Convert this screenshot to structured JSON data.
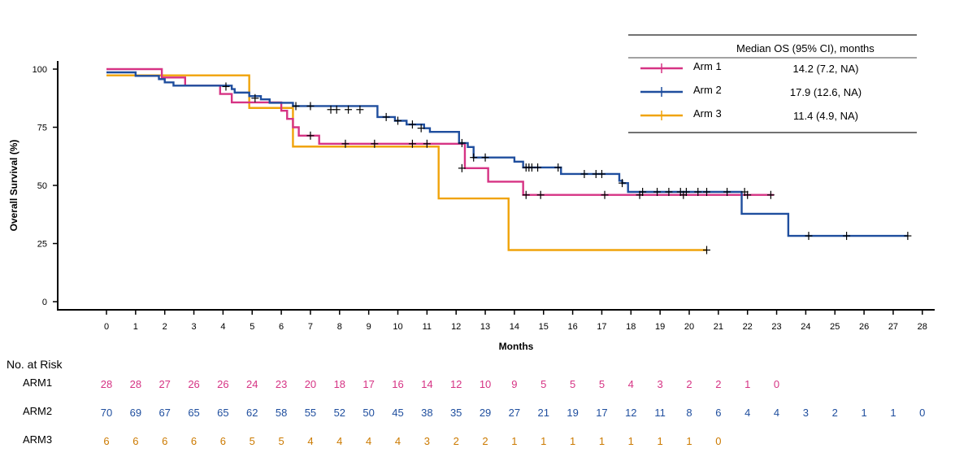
{
  "chart_data": {
    "type": "line",
    "subtype": "kaplan-meier",
    "xlabel": "Months",
    "ylabel": "Overall Survival  (%)",
    "xlim": [
      0,
      28
    ],
    "ylim": [
      0,
      100
    ],
    "x_ticks": [
      0,
      1,
      2,
      3,
      4,
      5,
      6,
      7,
      8,
      9,
      10,
      11,
      12,
      13,
      14,
      15,
      16,
      17,
      18,
      19,
      20,
      21,
      22,
      23,
      24,
      25,
      26,
      27,
      28
    ],
    "y_ticks": [
      0,
      25,
      50,
      75,
      100
    ],
    "legend": {
      "header": "Median OS   (95% CI), months",
      "placement": "top-right",
      "entries": [
        {
          "name": "Arm 1",
          "median": "14.2 (7.2, NA)"
        },
        {
          "name": "Arm 2",
          "median": "17.9 (12.6, NA)"
        },
        {
          "name": "Arm 3",
          "median": "11.4 (4.9, NA)"
        }
      ]
    },
    "series": [
      {
        "name": "Arm 1",
        "color": "#d63384",
        "steps": [
          [
            0,
            100
          ],
          [
            1.9,
            96.4
          ],
          [
            2.7,
            92.9
          ],
          [
            3.9,
            89.3
          ],
          [
            4.3,
            85.7
          ],
          [
            5.3,
            85.7
          ],
          [
            6.0,
            82.1
          ],
          [
            6.2,
            78.6
          ],
          [
            6.4,
            75.0
          ],
          [
            6.6,
            71.4
          ],
          [
            7.3,
            67.9
          ],
          [
            12.0,
            67.9
          ],
          [
            12.3,
            61.5
          ],
          [
            12.3,
            57.4
          ],
          [
            13.0,
            57.4
          ],
          [
            13.1,
            51.6
          ],
          [
            14.3,
            45.9
          ],
          [
            22.9,
            45.9
          ]
        ],
        "censors": [
          [
            7.0,
            71.4
          ],
          [
            8.2,
            67.9
          ],
          [
            9.2,
            67.9
          ],
          [
            10.5,
            67.9
          ],
          [
            11.0,
            67.9
          ],
          [
            12.2,
            57.4
          ],
          [
            14.4,
            45.9
          ],
          [
            14.9,
            45.9
          ],
          [
            17.1,
            45.9
          ],
          [
            18.3,
            45.9
          ],
          [
            19.8,
            45.9
          ],
          [
            22.0,
            45.9
          ],
          [
            22.8,
            45.9
          ]
        ]
      },
      {
        "name": "Arm 2",
        "color": "#1f4e9e",
        "steps": [
          [
            0,
            98.6
          ],
          [
            1.0,
            97.1
          ],
          [
            1.8,
            95.7
          ],
          [
            2.0,
            94.3
          ],
          [
            2.3,
            92.9
          ],
          [
            4.3,
            91.4
          ],
          [
            4.4,
            89.9
          ],
          [
            4.9,
            88.4
          ],
          [
            5.3,
            87.0
          ],
          [
            5.6,
            85.5
          ],
          [
            6.4,
            84.1
          ],
          [
            9.3,
            79.4
          ],
          [
            9.9,
            77.8
          ],
          [
            10.3,
            76.2
          ],
          [
            10.9,
            74.6
          ],
          [
            11.1,
            73.0
          ],
          [
            12.1,
            68.2
          ],
          [
            12.4,
            66.5
          ],
          [
            12.6,
            62.0
          ],
          [
            14.0,
            60.2
          ],
          [
            14.3,
            57.7
          ],
          [
            15.6,
            54.9
          ],
          [
            17.6,
            52.0
          ],
          [
            17.7,
            51.0
          ],
          [
            17.9,
            47.2
          ],
          [
            21.8,
            37.8
          ],
          [
            23.4,
            28.3
          ],
          [
            27.5,
            28.3
          ]
        ],
        "censors": [
          [
            4.1,
            92.5
          ],
          [
            5.1,
            87.5
          ],
          [
            6.5,
            84.1
          ],
          [
            7.0,
            84.1
          ],
          [
            7.7,
            82.6
          ],
          [
            7.9,
            82.6
          ],
          [
            8.3,
            82.6
          ],
          [
            8.7,
            82.6
          ],
          [
            9.6,
            79.4
          ],
          [
            10.0,
            77.8
          ],
          [
            10.5,
            76.2
          ],
          [
            10.8,
            74.6
          ],
          [
            12.2,
            68.2
          ],
          [
            12.6,
            62.0
          ],
          [
            13.0,
            62.0
          ],
          [
            14.4,
            57.7
          ],
          [
            14.5,
            57.7
          ],
          [
            14.6,
            57.7
          ],
          [
            14.8,
            57.7
          ],
          [
            15.5,
            57.7
          ],
          [
            16.4,
            54.9
          ],
          [
            16.8,
            54.9
          ],
          [
            17.0,
            54.9
          ],
          [
            17.7,
            51.0
          ],
          [
            18.4,
            47.2
          ],
          [
            18.9,
            47.2
          ],
          [
            19.3,
            47.2
          ],
          [
            19.7,
            47.2
          ],
          [
            19.9,
            47.2
          ],
          [
            20.3,
            47.2
          ],
          [
            20.6,
            47.2
          ],
          [
            21.3,
            47.2
          ],
          [
            21.9,
            47.2
          ],
          [
            24.1,
            28.3
          ],
          [
            25.4,
            28.3
          ],
          [
            27.5,
            28.3
          ]
        ]
      },
      {
        "name": "Arm 3",
        "color": "#f0a30a",
        "steps": [
          [
            0,
            97.3
          ],
          [
            4.9,
            83.3
          ],
          [
            6.4,
            66.7
          ],
          [
            11.4,
            44.4
          ],
          [
            13.8,
            22.2
          ],
          [
            20.6,
            22.2
          ]
        ],
        "censors": [
          [
            20.6,
            22.2
          ]
        ]
      }
    ],
    "at_risk": {
      "title": "No. at Risk",
      "rows": [
        {
          "label": "ARM1",
          "color": "#d63384",
          "values": [
            "28",
            "28",
            "27",
            "26",
            "26",
            "24",
            "23",
            "20",
            "18",
            "17",
            "16",
            "14",
            "12",
            "10",
            "9",
            "5",
            "5",
            "5",
            "4",
            "3",
            "2",
            "2",
            "1",
            "0"
          ]
        },
        {
          "label": "ARM2",
          "color": "#1f4e9e",
          "values": [
            "70",
            "69",
            "67",
            "65",
            "65",
            "62",
            "58",
            "55",
            "52",
            "50",
            "45",
            "38",
            "35",
            "29",
            "27",
            "21",
            "19",
            "17",
            "12",
            "11",
            "8",
            "6",
            "4",
            "4",
            "3",
            "2",
            "1",
            "1",
            "0"
          ]
        },
        {
          "label": "ARM3",
          "color": "#cc7a00",
          "values": [
            "6",
            "6",
            "6",
            "6",
            "6",
            "5",
            "5",
            "4",
            "4",
            "4",
            "4",
            "3",
            "2",
            "2",
            "1",
            "1",
            "1",
            "1",
            "1",
            "1",
            "1",
            "0"
          ]
        }
      ]
    }
  }
}
